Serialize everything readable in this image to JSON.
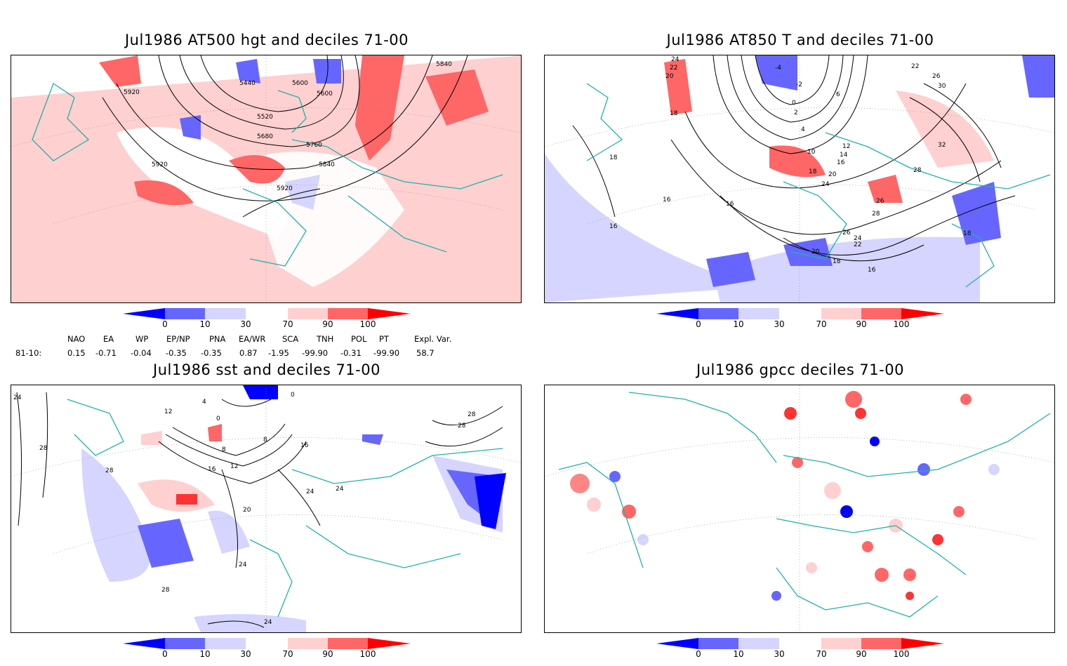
{
  "panels": [
    {
      "title": "Jul1986 AT500 hgt and deciles 71-00"
    },
    {
      "title": "Jul1986 AT850 T and deciles 71-00"
    },
    {
      "title": "Jul1986 sst and deciles 71-00"
    },
    {
      "title": "Jul1986 gpcc deciles 71-00"
    }
  ],
  "colorbar": {
    "ticks": [
      "0",
      "10",
      "30",
      "70",
      "90",
      "100"
    ],
    "colors": [
      "#0000ff",
      "#6666ff",
      "#d5d5ff",
      "#ffffff",
      "#ffd0d0",
      "#ff6666",
      "#ff0000"
    ]
  },
  "indices": {
    "row_label": "81-10:",
    "headers": [
      "NAO",
      "EA",
      "WP",
      "EP/NP",
      "PNA",
      "EA/WR",
      "SCA",
      "TNH",
      "POL",
      "PT",
      "Expl. Var."
    ],
    "values": [
      "0.15",
      "-0.71",
      "-0.04",
      "-0.35",
      "-0.35",
      "0.87",
      "-1.95",
      "-99.90",
      "-0.31",
      "-99.90",
      "58.7"
    ]
  },
  "contour_labels": {
    "hgt": [
      "5920",
      "5840",
      "5440",
      "5600",
      "5600",
      "5520",
      "5680",
      "5760",
      "5840",
      "5920",
      "5920"
    ],
    "t850": [
      "24",
      "22",
      "20",
      "18",
      "-4",
      "-2",
      "0",
      "2",
      "4",
      "6",
      "22",
      "26",
      "30",
      "32",
      "10",
      "12",
      "14",
      "16",
      "18",
      "20",
      "24",
      "26",
      "28",
      "28",
      "26",
      "24",
      "22",
      "20",
      "18",
      "16",
      "16",
      "16",
      "18",
      "18",
      "16"
    ],
    "sst": [
      "24",
      "12",
      "4",
      "0",
      "0",
      "28",
      "28",
      "28",
      "8",
      "8",
      "16",
      "12",
      "16",
      "28",
      "24",
      "20",
      "24",
      "24",
      "28",
      "24"
    ]
  },
  "map_colors": {
    "coast": "#20b2aa",
    "grid": "#888888",
    "contour": "#000000"
  }
}
